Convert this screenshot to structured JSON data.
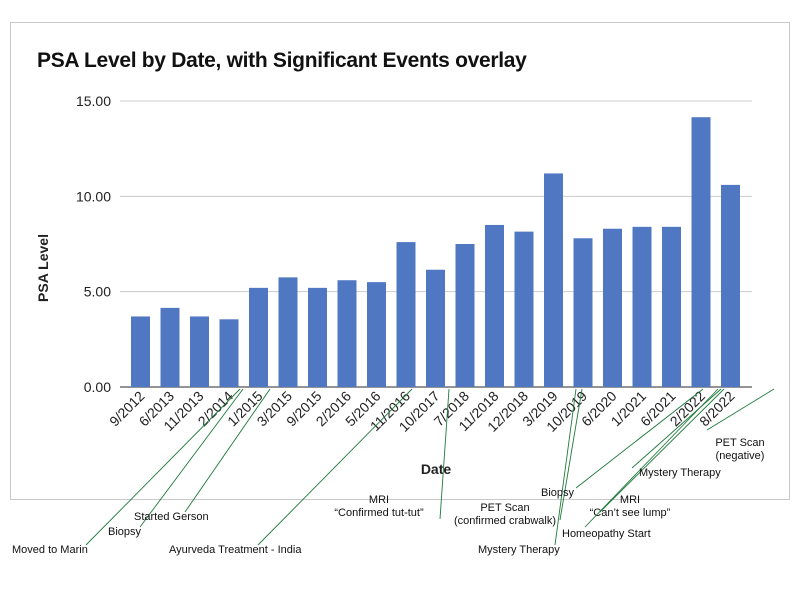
{
  "chart_data": {
    "type": "bar",
    "title": "PSA Level by Date, with Significant Events overlay",
    "xlabel": "Date",
    "ylabel": "PSA Level",
    "ylim": [
      0,
      15
    ],
    "yticks": [
      "0.00",
      "5.00",
      "10.00",
      "15.00"
    ],
    "grid": true,
    "legend": "none",
    "colors": {
      "bar": "#5078c2",
      "grid": "#cccccc",
      "annotation_line": "#1f7a3a"
    },
    "categories": [
      "9/2012",
      "6/2013",
      "11/2013",
      "2/2014",
      "1/2015",
      "3/2015",
      "9/2015",
      "2/2016",
      "5/2016",
      "11/2016",
      "10/2017",
      "7/2018",
      "11/2018",
      "12/2018",
      "3/2019",
      "10/2019",
      "6/2020",
      "1/2021",
      "6/2021",
      "2/2022",
      "8/2022"
    ],
    "values": [
      3.7,
      4.15,
      3.7,
      3.55,
      5.2,
      5.75,
      5.2,
      5.6,
      5.5,
      7.6,
      6.15,
      7.5,
      8.5,
      8.15,
      11.2,
      7.8,
      8.3,
      8.4,
      8.4,
      14.15,
      10.6
    ],
    "annotations": [
      {
        "lines": [
          "Moved to Marin"
        ],
        "category_index": 3
      },
      {
        "lines": [
          "Biopsy"
        ],
        "category_index": 3
      },
      {
        "lines": [
          "Started Gerson"
        ],
        "category_index": 4
      },
      {
        "lines": [
          "Ayurveda Treatment - India"
        ],
        "category_index": 9
      },
      {
        "lines": [
          "MRI",
          "“Confirmed tut-tut”"
        ],
        "category_index": 10
      },
      {
        "lines": [
          "PET Scan",
          "(confirmed crabwalk)"
        ],
        "category_index": 14
      },
      {
        "lines": [
          "Mystery Therapy"
        ],
        "category_index": 14
      },
      {
        "lines": [
          "Biopsy"
        ],
        "category_index": 18
      },
      {
        "lines": [
          "MRI",
          "“Can’t see lump”"
        ],
        "category_index": 19
      },
      {
        "lines": [
          "Homeopathy Start"
        ],
        "category_index": 19
      },
      {
        "lines": [
          "Mystery Therapy"
        ],
        "category_index": 19
      },
      {
        "lines": [
          "PET Scan",
          "(negative)"
        ],
        "category_index": 20
      }
    ]
  }
}
